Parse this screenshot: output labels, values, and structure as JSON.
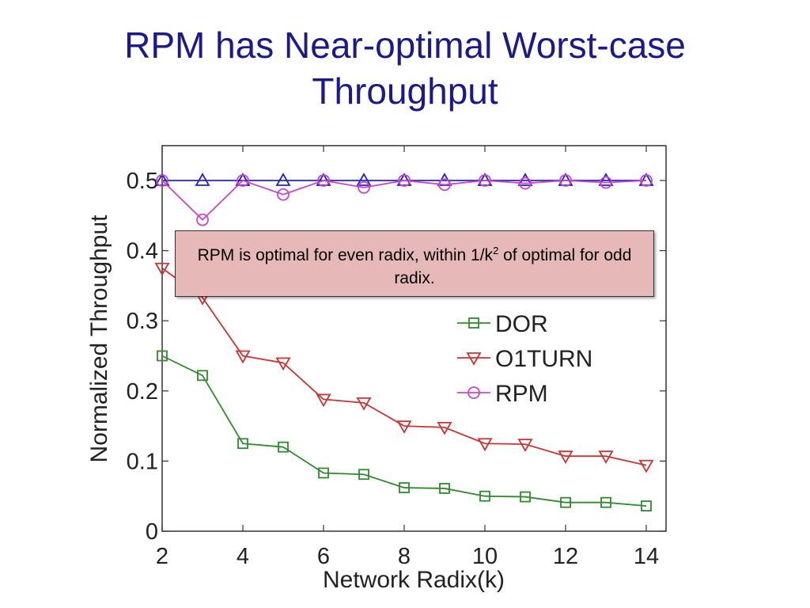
{
  "slide": {
    "title_line1": "RPM has Near-optimal Worst-case",
    "title_line2": "Throughput"
  },
  "callout": {
    "text_before": "RPM is optimal for even radix, within 1/k",
    "superscript": "2",
    "text_after": " of optimal for odd radix."
  },
  "chart_data": {
    "type": "line",
    "xlabel": "Network Radix(k)",
    "ylabel": "Normalized Throughput",
    "xlim": [
      2,
      14
    ],
    "ylim": [
      0,
      0.55
    ],
    "xticks": [
      2,
      4,
      6,
      8,
      10,
      12,
      14
    ],
    "yticks": [
      0,
      0.1,
      0.2,
      0.3,
      0.4,
      0.5
    ],
    "ytick_labels": [
      "0",
      "0.1",
      "0.2",
      "0.3",
      "0.4",
      "0.5"
    ],
    "grid": false,
    "legend_position": "right",
    "x": [
      2,
      3,
      4,
      5,
      6,
      7,
      8,
      9,
      10,
      11,
      12,
      13,
      14
    ],
    "series": [
      {
        "name": "",
        "marker": "triangle-up",
        "color": "#2222cc",
        "values": [
          0.5,
          0.5,
          0.5,
          0.5,
          0.5,
          0.5,
          0.5,
          0.5,
          0.5,
          0.5,
          0.5,
          0.5,
          0.5
        ]
      },
      {
        "name": "DOR",
        "marker": "square",
        "color": "#2e8b2e",
        "values": [
          0.25,
          0.222,
          0.125,
          0.12,
          0.083,
          0.081,
          0.062,
          0.061,
          0.05,
          0.049,
          0.041,
          0.041,
          0.036
        ]
      },
      {
        "name": "O1TURN",
        "marker": "triangle-down",
        "color": "#cc3333",
        "values": [
          0.375,
          0.333,
          0.25,
          0.24,
          0.188,
          0.183,
          0.15,
          0.148,
          0.125,
          0.124,
          0.107,
          0.107,
          0.094
        ]
      },
      {
        "name": "RPM",
        "marker": "circle",
        "color": "#cc44cc",
        "values": [
          0.5,
          0.444,
          0.5,
          0.48,
          0.5,
          0.49,
          0.5,
          0.494,
          0.5,
          0.496,
          0.5,
          0.497,
          0.5
        ]
      }
    ]
  }
}
